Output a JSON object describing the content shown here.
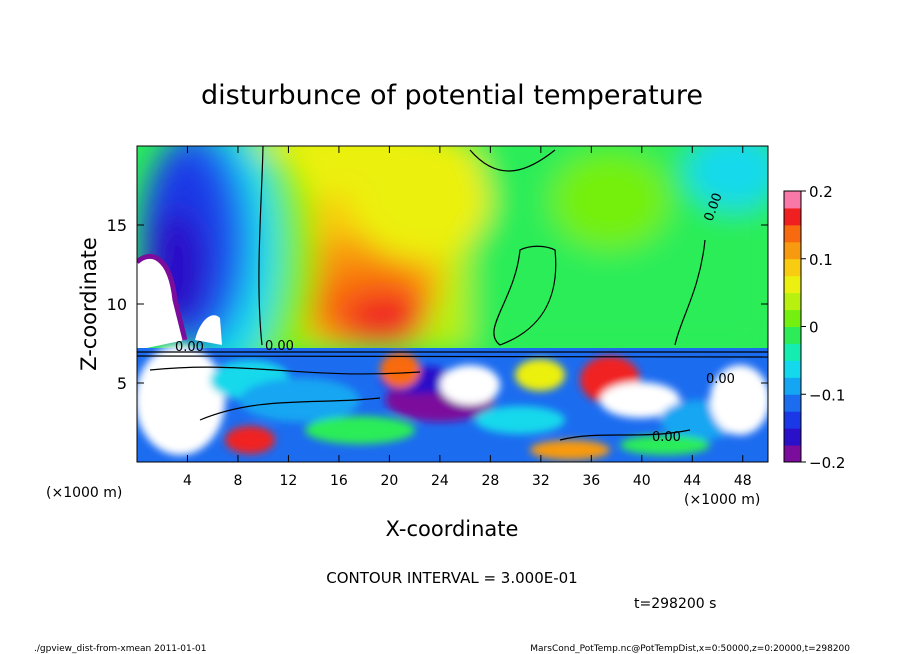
{
  "chart_data": {
    "type": "heatmap",
    "title": "disturbunce of potential temperature",
    "xlabel": "X-coordinate",
    "ylabel": "Z-coordinate",
    "x_unit": "(×1000 m)",
    "y_unit": "(×1000 m)",
    "xlim": [
      0,
      50
    ],
    "ylim": [
      0,
      20
    ],
    "x_ticks": [
      4,
      8,
      12,
      16,
      20,
      24,
      28,
      32,
      36,
      40,
      44,
      48
    ],
    "y_ticks": [
      5,
      10,
      15
    ],
    "colorbar": {
      "min": -0.2,
      "max": 0.2,
      "ticks": [
        0.2,
        0.1,
        0,
        -0.1,
        -0.2
      ],
      "tick_labels": [
        "0.2",
        "0.1",
        "0",
        "−0.1",
        "−0.2"
      ],
      "colors": [
        "#7b0d9c",
        "#2a10c8",
        "#1a38e6",
        "#1c6cf0",
        "#14a6f2",
        "#14d9ec",
        "#14ecb0",
        "#2ced58",
        "#74f010",
        "#b8f010",
        "#ecf010",
        "#f8cc10",
        "#f89a10",
        "#f86a10",
        "#f02020",
        "#f878a8"
      ]
    },
    "contour_labels": [
      "0.00",
      "0.00",
      "0.00",
      "0.00",
      "0.00"
    ],
    "contour_interval_text": "CONTOUR INTERVAL = 3.000E-01",
    "time_text": "t=298200 s"
  },
  "footer": {
    "script_name": "./gpview_dist-from-xmean   2011-01-01",
    "file_info": "MarsCond_PotTemp.nc@PotTempDist,x=0:50000,z=0:20000,t=298200"
  },
  "colors": {
    "background": "#ffffff",
    "text": "#000000"
  }
}
